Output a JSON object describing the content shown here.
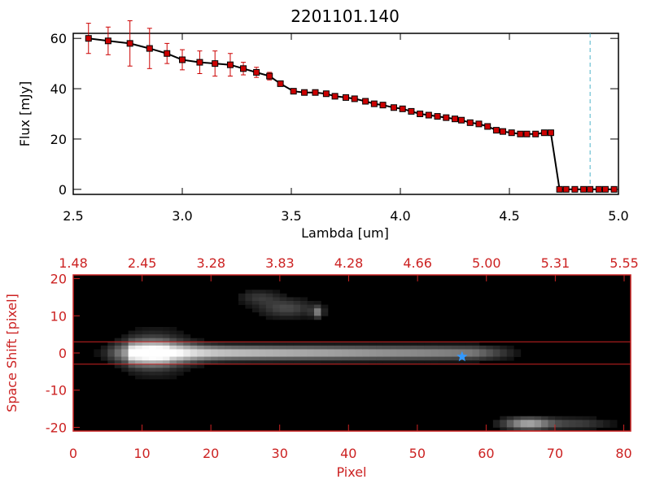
{
  "figure": {
    "title": "2201101.140"
  },
  "chart_data": [
    {
      "type": "line",
      "title": "2201101.140",
      "xlabel": "Lambda [um]",
      "ylabel": "Flux [mJy]",
      "xlim": [
        2.5,
        5.0
      ],
      "ylim": [
        -2,
        62
      ],
      "x_ticks": [
        "2.5",
        "3.0",
        "3.5",
        "4.0",
        "4.5",
        "5.0"
      ],
      "y_ticks": [
        "0",
        "20",
        "40",
        "60"
      ],
      "series": [
        {
          "x": [
            2.57,
            2.66,
            2.76,
            2.85,
            2.93,
            3.0,
            3.08,
            3.15,
            3.22,
            3.28,
            3.34,
            3.4,
            3.45,
            3.51,
            3.56,
            3.61,
            3.66,
            3.7,
            3.75,
            3.79,
            3.84,
            3.88,
            3.92,
            3.97,
            4.01,
            4.05,
            4.09,
            4.13,
            4.17,
            4.21,
            4.25,
            4.28,
            4.32,
            4.36,
            4.4,
            4.44,
            4.47,
            4.51,
            4.55,
            4.58,
            4.62,
            4.66,
            4.69,
            4.73,
            4.76,
            4.8,
            4.84,
            4.87,
            4.91,
            4.94,
            4.98
          ],
          "y": [
            60,
            59,
            58,
            56,
            54,
            51.5,
            50.5,
            50,
            49.5,
            48,
            46.5,
            45,
            42,
            39,
            38.5,
            38.5,
            38,
            37,
            36.5,
            36,
            35,
            34,
            33.5,
            32.5,
            32,
            31,
            30,
            29.5,
            29,
            28.5,
            28,
            27.5,
            26.5,
            26,
            25,
            23.5,
            23,
            22.5,
            22,
            22,
            22,
            22.5,
            22.5,
            0,
            0,
            0,
            0,
            0,
            0,
            0,
            0
          ],
          "yerr": [
            6,
            5.5,
            9,
            8,
            4,
            4,
            4.5,
            5,
            4.5,
            2.5,
            2,
            1.5,
            1,
            1,
            1,
            1,
            1,
            1,
            1,
            1,
            1,
            1,
            1,
            1,
            1,
            1,
            1,
            1,
            1,
            1,
            1,
            1,
            1,
            1,
            1,
            1,
            1,
            1,
            1,
            1,
            1,
            1,
            1,
            0,
            0,
            0,
            0,
            0,
            0,
            0,
            0
          ],
          "line_color": "#000000",
          "marker_color": "#cc0000",
          "error_color": "#cc0000"
        }
      ],
      "vline_x": 4.87,
      "vline_color": "#4db3c9"
    },
    {
      "type": "heatmap",
      "xlabel": "Pixel",
      "ylabel": "Space Shift [pixel]",
      "xlim": [
        0,
        81
      ],
      "ylim": [
        -21,
        21
      ],
      "x_ticks": [
        "0",
        "10",
        "20",
        "30",
        "40",
        "50",
        "60",
        "70",
        "80"
      ],
      "y_ticks": [
        "20",
        "10",
        "0",
        "-10",
        "-20"
      ],
      "top_ticks": [
        "1.48",
        "2.45",
        "3.28",
        "3.83",
        "4.28",
        "4.66",
        "5.00",
        "5.31",
        "5.55"
      ],
      "hlines_y": [
        3,
        -3
      ],
      "marker_x": 56.5,
      "marker_y": -1,
      "marker_color": "#3399ff",
      "frame_color": "#cc2222"
    }
  ]
}
